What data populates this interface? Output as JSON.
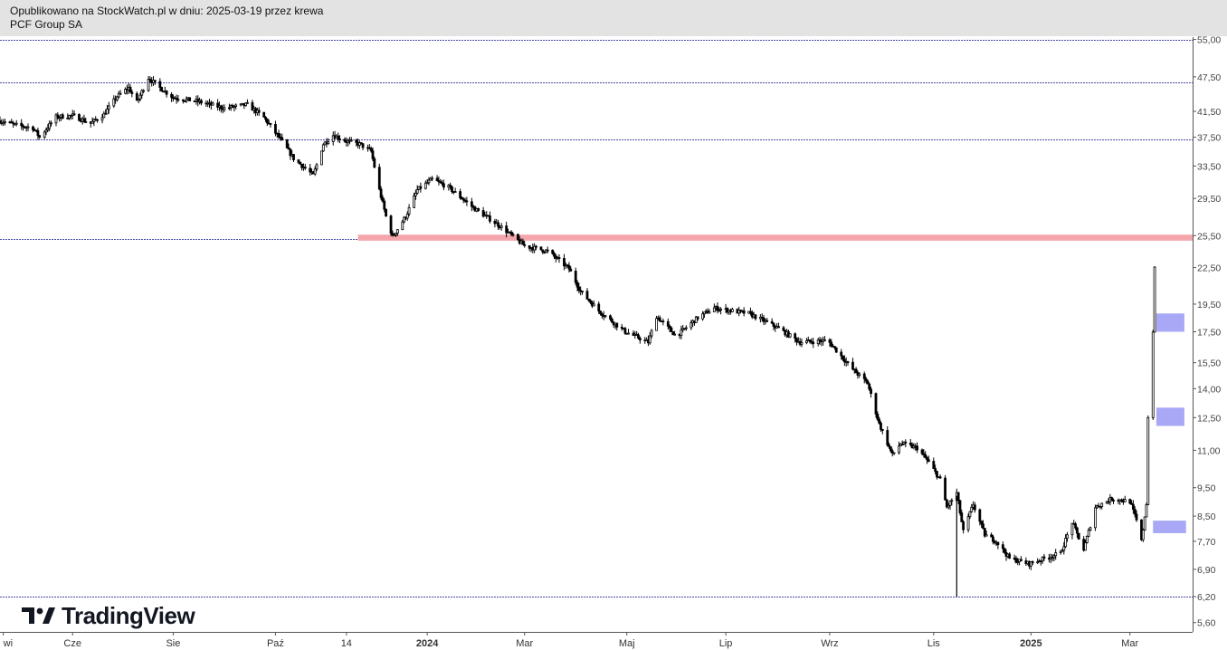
{
  "header": {
    "published": "Opublikowano na StockWatch.pl w dniu: 2025-03-19 przez krewa",
    "symbol": "PCF Group SA"
  },
  "watermark": {
    "brand": "TradingView"
  },
  "colors": {
    "candle": "#000000",
    "support_lines": "#4b4ba8",
    "resistance_zone": "#f4a6ad",
    "target_boxes": "#9f9ff5",
    "header_bg": "#e3e3e3"
  },
  "chart_data": {
    "type": "candlestick",
    "y_scale": "log",
    "ylim": [
      5.4,
      55.5
    ],
    "x_range": [
      "2023-04-18",
      "2025-04-10"
    ],
    "x_ticks": [
      {
        "label": "wi",
        "date": "2023-04-20",
        "bold": false
      },
      {
        "label": "Cze",
        "date": "2023-06-01",
        "bold": false
      },
      {
        "label": "Sie",
        "date": "2023-08-01",
        "bold": false
      },
      {
        "label": "Paź",
        "date": "2023-10-02",
        "bold": false
      },
      {
        "label": "14",
        "date": "2023-11-14",
        "bold": false
      },
      {
        "label": "2024",
        "date": "2024-01-02",
        "bold": true
      },
      {
        "label": "Mar",
        "date": "2024-03-01",
        "bold": false
      },
      {
        "label": "Maj",
        "date": "2024-05-02",
        "bold": false
      },
      {
        "label": "Lip",
        "date": "2024-07-01",
        "bold": false
      },
      {
        "label": "Wrz",
        "date": "2024-09-02",
        "bold": false
      },
      {
        "label": "Lis",
        "date": "2024-11-04",
        "bold": false
      },
      {
        "label": "2025",
        "date": "2025-01-02",
        "bold": true
      },
      {
        "label": "Mar",
        "date": "2025-03-03",
        "bold": false
      }
    ],
    "y_ticks": [
      {
        "label": "55,00",
        "value": 55.0
      },
      {
        "label": "47,50",
        "value": 47.5
      },
      {
        "label": "41,50",
        "value": 41.5
      },
      {
        "label": "37,50",
        "value": 37.5
      },
      {
        "label": "33,50",
        "value": 33.5
      },
      {
        "label": "29,50",
        "value": 29.5
      },
      {
        "label": "25,50",
        "value": 25.5
      },
      {
        "label": "22,50",
        "value": 22.5
      },
      {
        "label": "19,50",
        "value": 19.5
      },
      {
        "label": "17,50",
        "value": 17.5
      },
      {
        "label": "15,50",
        "value": 15.5
      },
      {
        "label": "14,00",
        "value": 14.0
      },
      {
        "label": "12,50",
        "value": 12.5
      },
      {
        "label": "11,00",
        "value": 11.0
      },
      {
        "label": "9,50",
        "value": 9.5
      },
      {
        "label": "8,50",
        "value": 8.5
      },
      {
        "label": "7,70",
        "value": 7.7
      },
      {
        "label": "6,90",
        "value": 6.9
      },
      {
        "label": "6,20",
        "value": 6.2
      },
      {
        "label": "5,60",
        "value": 5.6
      }
    ],
    "horizontal_lines": [
      55.0,
      46.5,
      37.2,
      25.2,
      6.2
    ],
    "zones": [
      {
        "kind": "resistance",
        "from": "2023-11-21",
        "to": "2025-04-10",
        "low": 25.0,
        "high": 25.6
      }
    ],
    "boxes": [
      {
        "from": "2025-03-19",
        "to": "2025-04-05",
        "low": 17.5,
        "high": 18.8
      },
      {
        "from": "2025-03-19",
        "to": "2025-04-05",
        "low": 12.1,
        "high": 13.0
      },
      {
        "from": "2025-03-17",
        "to": "2025-04-06",
        "low": 7.95,
        "high": 8.35
      }
    ],
    "price_path": [
      [
        "2023-04-18",
        40.0
      ],
      [
        "2023-04-28",
        39.3
      ],
      [
        "2023-05-08",
        38.9
      ],
      [
        "2023-05-12",
        37.5
      ],
      [
        "2023-05-22",
        40.6
      ],
      [
        "2023-06-01",
        40.8
      ],
      [
        "2023-06-12",
        39.6
      ],
      [
        "2023-06-20",
        41.0
      ],
      [
        "2023-06-28",
        44.0
      ],
      [
        "2023-07-05",
        45.5
      ],
      [
        "2023-07-10",
        43.0
      ],
      [
        "2023-07-17",
        47.3
      ],
      [
        "2023-07-24",
        45.5
      ],
      [
        "2023-08-01",
        43.8
      ],
      [
        "2023-08-15",
        43.2
      ],
      [
        "2023-09-01",
        42.0
      ],
      [
        "2023-09-15",
        42.6
      ],
      [
        "2023-09-25",
        40.5
      ],
      [
        "2023-10-05",
        37.2
      ],
      [
        "2023-10-13",
        34.5
      ],
      [
        "2023-10-20",
        33.2
      ],
      [
        "2023-10-25",
        32.3
      ],
      [
        "2023-10-31",
        36.5
      ],
      [
        "2023-11-06",
        37.8
      ],
      [
        "2023-11-14",
        36.9
      ],
      [
        "2023-11-22",
        36.5
      ],
      [
        "2023-11-29",
        35.5
      ],
      [
        "2023-12-04",
        30.5
      ],
      [
        "2023-12-08",
        27.5
      ],
      [
        "2023-12-12",
        25.4
      ],
      [
        "2023-12-20",
        27.5
      ],
      [
        "2023-12-27",
        30.5
      ],
      [
        "2024-01-05",
        31.8
      ],
      [
        "2024-01-15",
        30.8
      ],
      [
        "2024-01-31",
        28.3
      ],
      [
        "2024-02-15",
        26.5
      ],
      [
        "2024-03-01",
        24.5
      ],
      [
        "2024-03-15",
        24.0
      ],
      [
        "2024-03-28",
        22.4
      ],
      [
        "2024-04-04",
        20.5
      ],
      [
        "2024-04-15",
        19.0
      ],
      [
        "2024-05-01",
        17.5
      ],
      [
        "2024-05-15",
        16.8
      ],
      [
        "2024-05-20",
        18.6
      ],
      [
        "2024-06-01",
        17.2
      ],
      [
        "2024-06-14",
        18.5
      ],
      [
        "2024-06-24",
        19.2
      ],
      [
        "2024-07-15",
        18.8
      ],
      [
        "2024-08-01",
        17.8
      ],
      [
        "2024-08-15",
        16.8
      ],
      [
        "2024-09-01",
        16.9
      ],
      [
        "2024-09-15",
        15.2
      ],
      [
        "2024-09-25",
        14.3
      ],
      [
        "2024-10-02",
        12.2
      ],
      [
        "2024-10-10",
        10.8
      ],
      [
        "2024-10-15",
        11.3
      ],
      [
        "2024-10-25",
        11.1
      ],
      [
        "2024-11-01",
        10.5
      ],
      [
        "2024-11-08",
        9.8
      ],
      [
        "2024-11-12",
        8.8
      ],
      [
        "2024-11-18",
        9.3
      ],
      [
        "2024-11-22",
        8.0
      ],
      [
        "2024-11-28",
        8.9
      ],
      [
        "2024-12-05",
        7.9
      ],
      [
        "2024-12-12",
        7.7
      ],
      [
        "2024-12-20",
        7.2
      ],
      [
        "2025-01-01",
        7.05
      ],
      [
        "2025-01-10",
        7.2
      ],
      [
        "2025-01-20",
        7.35
      ],
      [
        "2025-01-27",
        8.3
      ],
      [
        "2025-02-03",
        7.45
      ],
      [
        "2025-02-10",
        8.8
      ],
      [
        "2025-02-20",
        9.1
      ],
      [
        "2025-03-03",
        9.0
      ],
      [
        "2025-03-08",
        8.2
      ],
      [
        "2025-03-10",
        7.7
      ],
      [
        "2025-03-13",
        8.9
      ],
      [
        "2025-03-14",
        12.5
      ],
      [
        "2025-03-17",
        17.5
      ],
      [
        "2025-03-18",
        22.5
      ]
    ],
    "spikes": [
      {
        "date": "2024-11-18",
        "low": 6.2,
        "high": 9.2
      }
    ]
  }
}
